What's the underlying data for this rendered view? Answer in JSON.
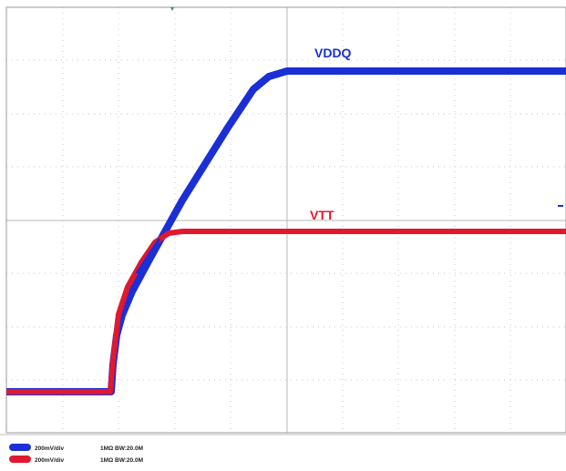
{
  "traces": [
    {
      "label": "VDDQ",
      "color": "#1a2fd6"
    },
    {
      "label": "VTT",
      "color": "#e01830"
    }
  ],
  "status_bar": [
    {
      "scale": "200mV/div",
      "input": "1MΩ BW:20.0M"
    },
    {
      "scale": "200mV/div",
      "input": "1MΩ BW:20.0M"
    }
  ]
}
